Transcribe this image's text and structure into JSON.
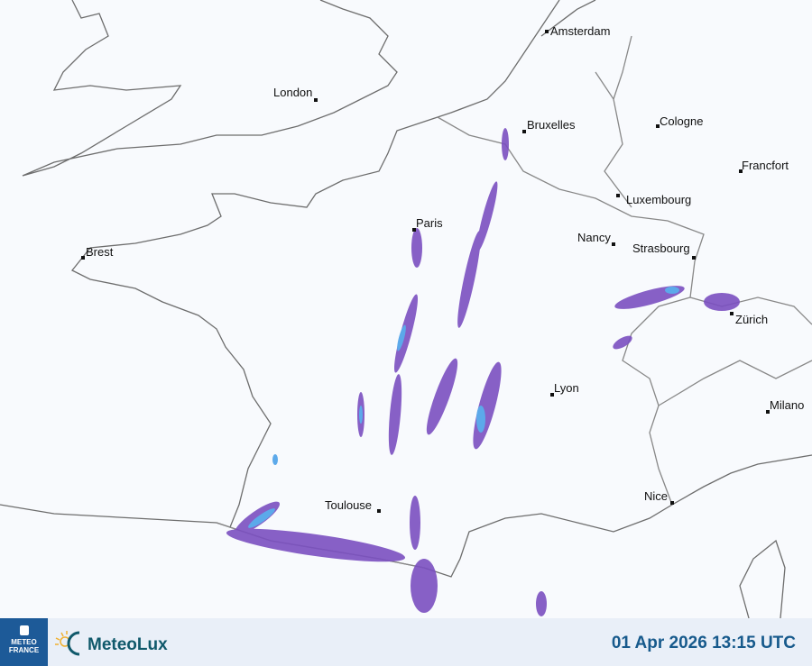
{
  "map": {
    "cities": [
      {
        "name": "Amsterdam"
      },
      {
        "name": "London"
      },
      {
        "name": "Bruxelles"
      },
      {
        "name": "Cologne"
      },
      {
        "name": "Francfort"
      },
      {
        "name": "Luxembourg"
      },
      {
        "name": "Paris"
      },
      {
        "name": "Brest"
      },
      {
        "name": "Nancy"
      },
      {
        "name": "Strasbourg"
      },
      {
        "name": "Zürich"
      },
      {
        "name": "Lyon"
      },
      {
        "name": "Milano"
      },
      {
        "name": "Nice"
      },
      {
        "name": "Toulouse"
      }
    ],
    "colors": {
      "coast": "#6d6d6d",
      "radar_light": "#6e88e0",
      "radar_dark": "#7a4fc0",
      "radar_core": "#4aa0e8"
    }
  },
  "footer": {
    "meteo_france_logo": "METEO FRANCE",
    "meteolux_logo": "MeteoLux",
    "timestamp": "01 Apr 2026 13:15 UTC"
  }
}
